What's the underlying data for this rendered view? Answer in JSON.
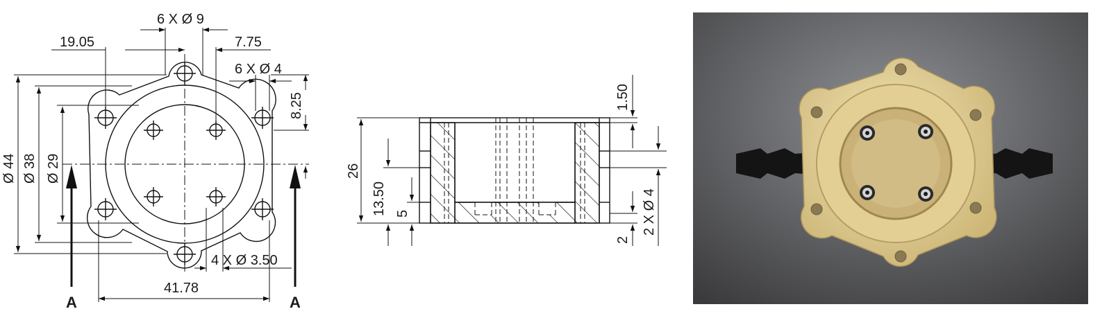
{
  "top_view": {
    "dims": {
      "holes6x9": "6 X Ø 9",
      "d1905": "19.05",
      "d775": "7.75",
      "holes6x4": "6 X Ø 4",
      "d825": "8.25",
      "d44": "Ø 44",
      "d38": "Ø 38",
      "d29": "Ø 29",
      "holes4x350": "4 X Ø 3.50",
      "d4178": "41.78"
    },
    "section_marker": "A"
  },
  "section_view": {
    "dims": {
      "d150": "1.50",
      "d26": "26",
      "d1350": "13.50",
      "d5": "5",
      "holes2x4": "2 X Ø 4",
      "d2": "2"
    }
  },
  "photo": {
    "colors": {
      "background": "#5e5e60",
      "plastic": "#e8d7a0",
      "tube": "#151515",
      "pin": "#c9c9c9"
    }
  }
}
